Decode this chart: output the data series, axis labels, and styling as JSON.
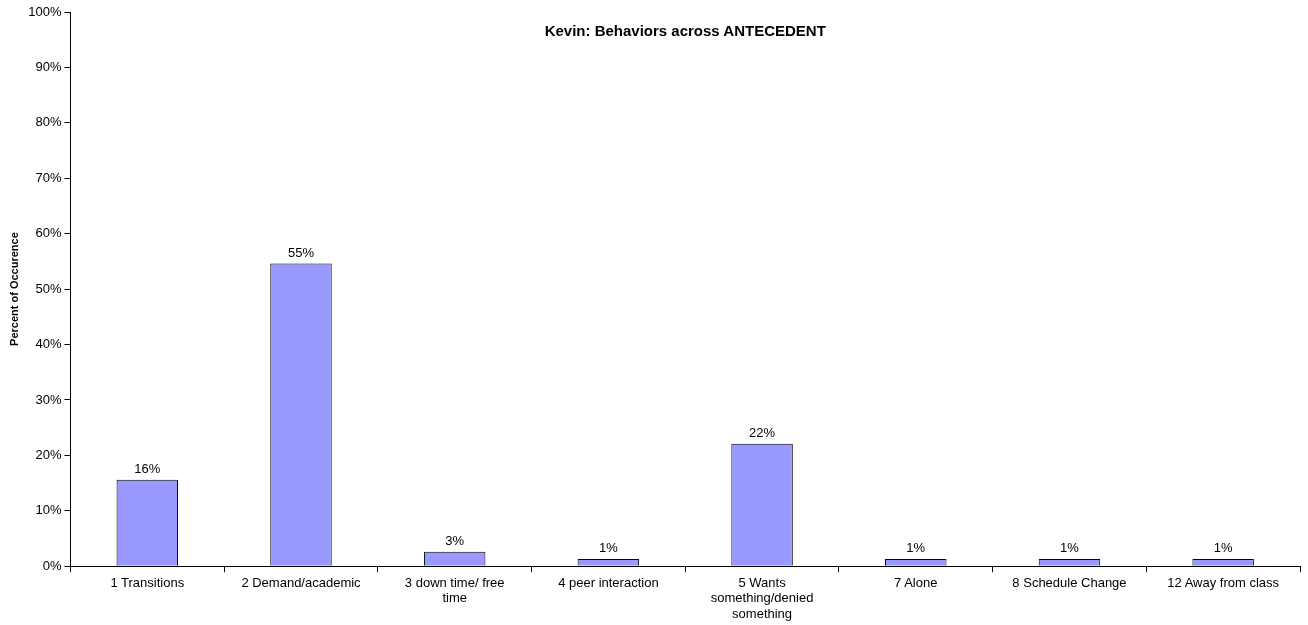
{
  "chart_data": {
    "type": "bar",
    "title": "Kevin: Behaviors across ANTECEDENT",
    "ylabel": "Percent of Occurence",
    "categories": [
      "1 Transitions",
      "2 Demand/academic",
      "3 down time/ free time",
      "4 peer interaction",
      "5 Wants something/denied something",
      "7 Alone",
      "8 Schedule Change",
      "12 Away from class"
    ],
    "values": [
      15.6,
      54.6,
      2.6,
      1.3,
      22.1,
      1.3,
      1.3,
      1.3
    ],
    "value_labels": [
      "16%",
      "55%",
      "3%",
      "1%",
      "22%",
      "1%",
      "1%",
      "1%"
    ],
    "color": "#9999ff",
    "grid": false,
    "legend": false,
    "ylim": [
      0,
      100
    ],
    "yticks": [
      {
        "value": 0,
        "label": "0%"
      },
      {
        "value": 10,
        "label": "10%"
      },
      {
        "value": 20,
        "label": "20%"
      },
      {
        "value": 30,
        "label": "30%"
      },
      {
        "value": 40,
        "label": "40%"
      },
      {
        "value": 50,
        "label": "50%"
      },
      {
        "value": 60,
        "label": "60%"
      },
      {
        "value": 70,
        "label": "70%"
      },
      {
        "value": 80,
        "label": "80%"
      },
      {
        "value": 90,
        "label": "90%"
      },
      {
        "value": 100,
        "label": "100%"
      }
    ]
  }
}
